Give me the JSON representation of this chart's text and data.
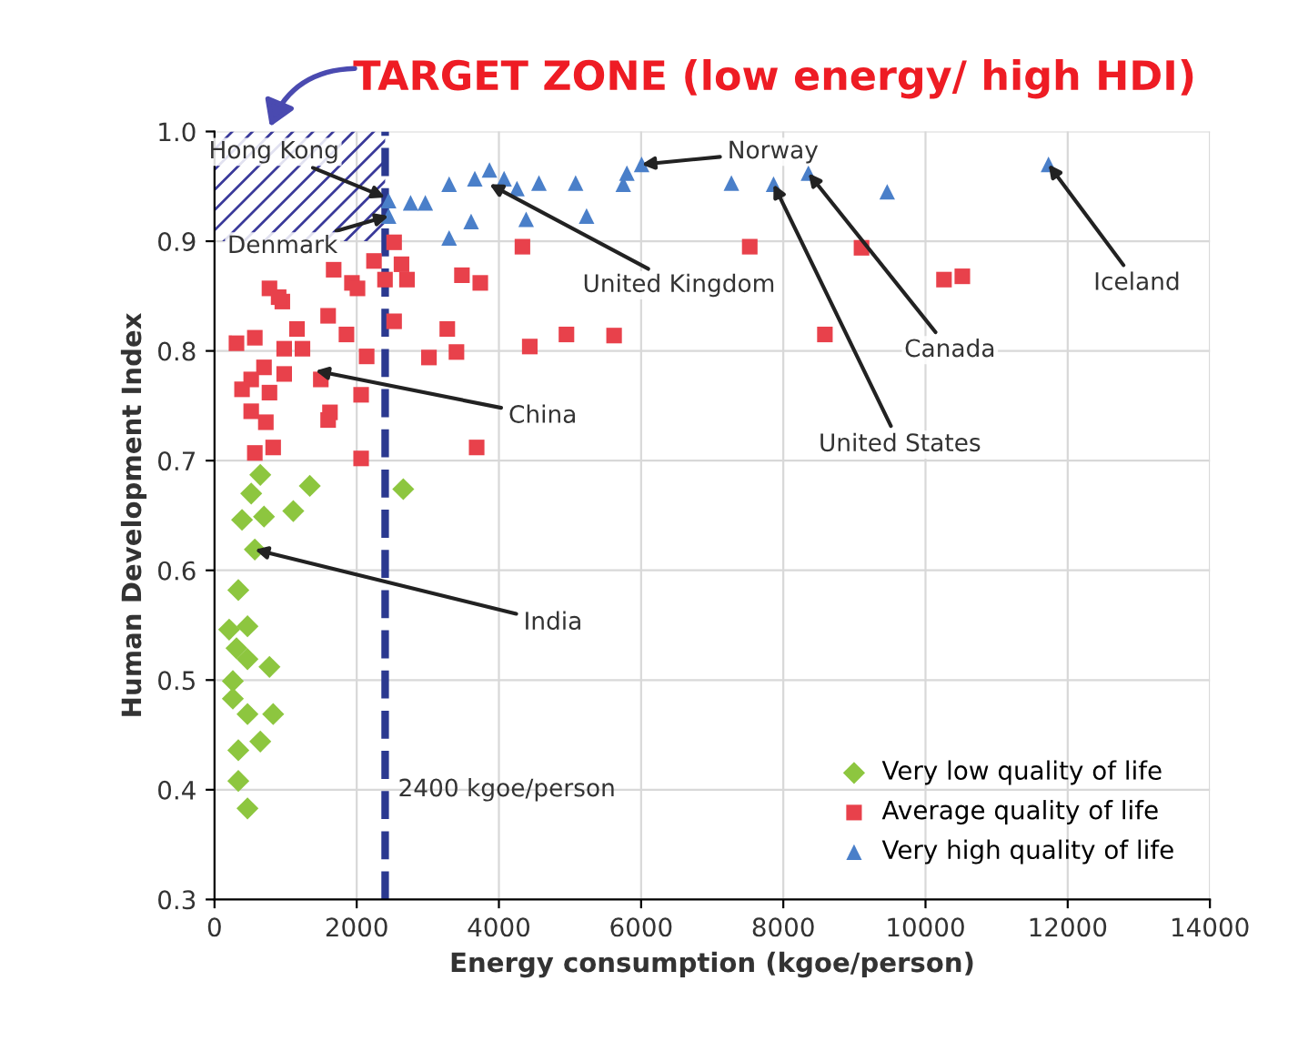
{
  "chart_data": {
    "type": "scatter",
    "title": "TARGET ZONE (low energy/ high HDI)",
    "xlabel": "Energy consumption (kgoe/person)",
    "ylabel": "Human Development Index",
    "xlim": [
      0,
      14000
    ],
    "xticks": [
      0,
      2000,
      4000,
      6000,
      8000,
      10000,
      12000,
      14000
    ],
    "ylim": [
      0.3,
      1.0
    ],
    "yticks": [
      0.3,
      0.4,
      0.5,
      0.6,
      0.7,
      0.8,
      0.9,
      {
        "value": 1.0,
        "label": "1.0"
      }
    ],
    "grid": true,
    "legend": "bottom right",
    "series": [
      {
        "name": "Very low quality of life",
        "color": "#8dc63f",
        "marker": "diamond",
        "x": [
          644,
          516,
          1340,
          2655,
          387,
          696,
          1108,
          567,
          335,
          206,
          464,
          309,
          464,
          773,
          258,
          258,
          464,
          825,
          335,
          644,
          335,
          464
        ],
        "values": [
          0.687,
          0.67,
          0.677,
          0.674,
          0.646,
          0.649,
          0.654,
          0.619,
          0.582,
          0.546,
          0.549,
          0.529,
          0.519,
          0.512,
          0.499,
          0.483,
          0.469,
          0.469,
          0.436,
          0.444,
          0.408,
          0.383
        ]
      },
      {
        "name": "Average quality of life",
        "color": "#e8414b",
        "marker": "square",
        "x": [
          2526,
          2243,
          2630,
          2707,
          2398,
          1676,
          1933,
          2011,
          773,
          954,
          1598,
          1856,
          2526,
          3274,
          3480,
          3738,
          4331,
          2140,
          3016,
          3403,
          4434,
          4950,
          567,
          696,
          516,
          980,
          1237,
          980,
          773,
          516,
          722,
          1495,
          1624,
          2062,
          567,
          825,
          1598,
          2062,
          3687,
          7528,
          9100,
          10260,
          10518,
          8585,
          5620,
          309,
          387,
          1160,
          902
        ],
        "values": [
          0.899,
          0.882,
          0.879,
          0.865,
          0.865,
          0.874,
          0.862,
          0.857,
          0.857,
          0.845,
          0.832,
          0.815,
          0.827,
          0.82,
          0.869,
          0.862,
          0.895,
          0.795,
          0.794,
          0.799,
          0.804,
          0.815,
          0.812,
          0.785,
          0.774,
          0.802,
          0.802,
          0.779,
          0.762,
          0.745,
          0.735,
          0.774,
          0.744,
          0.76,
          0.707,
          0.712,
          0.737,
          0.702,
          0.712,
          0.895,
          0.894,
          0.865,
          0.868,
          0.815,
          0.814,
          0.807,
          0.765,
          0.82,
          0.849
        ]
      },
      {
        "name": "Very high quality of life",
        "color": "#4a7fc9",
        "marker": "triangle",
        "x": [
          2449,
          2758,
          2965,
          3300,
          3661,
          3867,
          4073,
          4254,
          4563,
          3300,
          3609,
          4383,
          2449,
          5079,
          5233,
          5749,
          5800,
          6007,
          7270,
          7863,
          8353,
          9461,
          11730
        ],
        "values": [
          0.937,
          0.935,
          0.935,
          0.952,
          0.957,
          0.965,
          0.957,
          0.948,
          0.953,
          0.903,
          0.918,
          0.92,
          0.923,
          0.953,
          0.923,
          0.952,
          0.962,
          0.97,
          0.953,
          0.952,
          0.962,
          0.945,
          0.97
        ]
      }
    ],
    "ref_lines": [
      {
        "axis": "x",
        "value": 2400,
        "label": "2400 kgoe/person",
        "color": "#2b3990",
        "line_style": "dashed"
      }
    ],
    "bands": [
      {
        "axis": "y",
        "from": 0.9,
        "to": 1.0,
        "color": "#3a3a9a"
      }
    ],
    "annotations": [
      {
        "text": "Hong Kong",
        "x": 2400,
        "y": 0.94
      },
      {
        "text": "Denmark",
        "x": 2449,
        "y": 0.923
      },
      {
        "text": "United Kingdom",
        "x": 3867,
        "y": 0.952
      },
      {
        "text": "China",
        "x": 1418,
        "y": 0.782
      },
      {
        "text": "India",
        "x": 567,
        "y": 0.619
      },
      {
        "text": "Norway",
        "x": 6007,
        "y": 0.97
      },
      {
        "text": "United States",
        "x": 7863,
        "y": 0.952
      },
      {
        "text": "Canada",
        "x": 8353,
        "y": 0.962
      },
      {
        "text": "Iceland",
        "x": 11730,
        "y": 0.97
      }
    ]
  }
}
